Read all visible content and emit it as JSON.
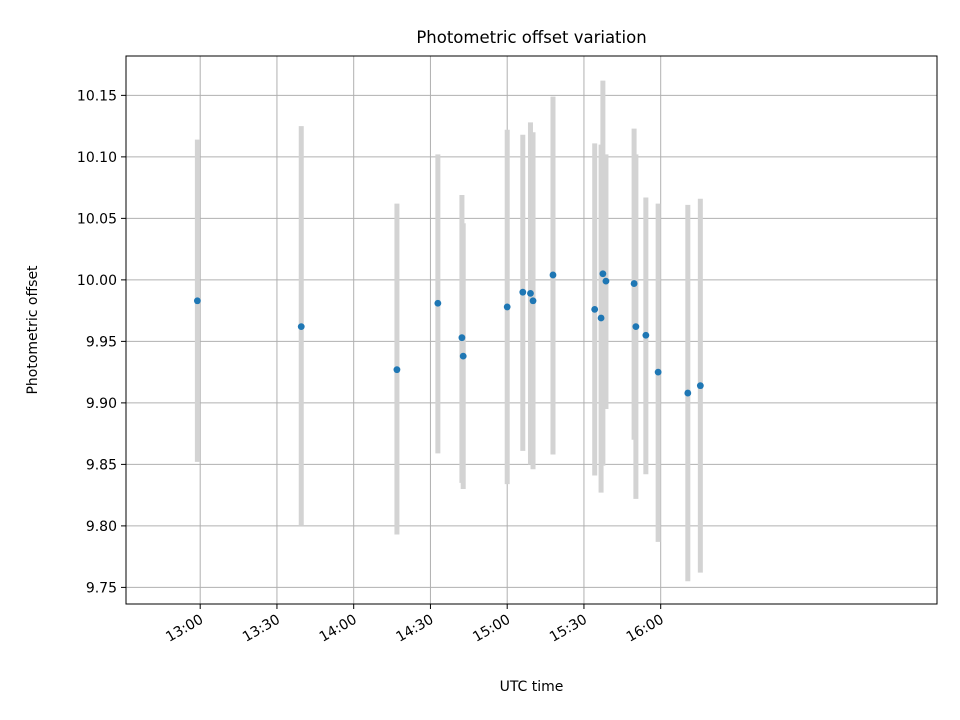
{
  "chart_data": {
    "type": "scatter",
    "title": "Photometric offset variation",
    "xlabel": "UTC time",
    "ylabel": "Photometric offset",
    "grid": true,
    "x_unit": "minutes since 00:00 UTC",
    "xlim": [
      751,
      1068
    ],
    "ylim": [
      9.7365,
      10.182
    ],
    "x_ticks": [
      {
        "value": 780,
        "label": "13:00"
      },
      {
        "value": 810,
        "label": "13:30"
      },
      {
        "value": 840,
        "label": "14:00"
      },
      {
        "value": 870,
        "label": "14:30"
      },
      {
        "value": 900,
        "label": "15:00"
      },
      {
        "value": 930,
        "label": "15:30"
      },
      {
        "value": 960,
        "label": "16:00"
      }
    ],
    "y_ticks": [
      {
        "value": 9.75,
        "label": "9.75"
      },
      {
        "value": 9.8,
        "label": "9.80"
      },
      {
        "value": 9.85,
        "label": "9.85"
      },
      {
        "value": 9.9,
        "label": "9.90"
      },
      {
        "value": 9.95,
        "label": "9.95"
      },
      {
        "value": 10.0,
        "label": "10.00"
      },
      {
        "value": 10.05,
        "label": "10.05"
      },
      {
        "value": 10.1,
        "label": "10.10"
      },
      {
        "value": 10.15,
        "label": "10.15"
      }
    ],
    "marker_color": "#1f77b4",
    "errorbar_color": "#d3d3d3",
    "points": [
      {
        "x": 778.9,
        "y": 9.983,
        "ylow": 9.852,
        "yhigh": 10.114
      },
      {
        "x": 819.5,
        "y": 9.962,
        "ylow": 9.8,
        "yhigh": 10.125
      },
      {
        "x": 856.9,
        "y": 9.927,
        "ylow": 9.793,
        "yhigh": 10.062
      },
      {
        "x": 872.9,
        "y": 9.981,
        "ylow": 9.859,
        "yhigh": 10.102
      },
      {
        "x": 882.3,
        "y": 9.953,
        "ylow": 9.835,
        "yhigh": 10.069
      },
      {
        "x": 882.8,
        "y": 9.938,
        "ylow": 9.83,
        "yhigh": 10.046
      },
      {
        "x": 900.0,
        "y": 9.978,
        "ylow": 9.834,
        "yhigh": 10.122
      },
      {
        "x": 906.1,
        "y": 9.99,
        "ylow": 9.861,
        "yhigh": 10.118
      },
      {
        "x": 909.1,
        "y": 9.989,
        "ylow": 9.85,
        "yhigh": 10.128
      },
      {
        "x": 910.1,
        "y": 9.983,
        "ylow": 9.846,
        "yhigh": 10.12
      },
      {
        "x": 917.9,
        "y": 10.004,
        "ylow": 9.858,
        "yhigh": 10.149
      },
      {
        "x": 934.2,
        "y": 9.976,
        "ylow": 9.841,
        "yhigh": 10.111
      },
      {
        "x": 936.7,
        "y": 9.969,
        "ylow": 9.827,
        "yhigh": 10.11
      },
      {
        "x": 937.4,
        "y": 10.005,
        "ylow": 9.849,
        "yhigh": 10.162
      },
      {
        "x": 938.6,
        "y": 9.999,
        "ylow": 9.895,
        "yhigh": 10.102
      },
      {
        "x": 949.6,
        "y": 9.997,
        "ylow": 9.87,
        "yhigh": 10.123
      },
      {
        "x": 950.3,
        "y": 9.962,
        "ylow": 9.822,
        "yhigh": 10.102
      },
      {
        "x": 954.2,
        "y": 9.955,
        "ylow": 9.842,
        "yhigh": 10.067
      },
      {
        "x": 959.0,
        "y": 9.925,
        "ylow": 9.787,
        "yhigh": 10.062
      },
      {
        "x": 970.6,
        "y": 9.908,
        "ylow": 9.755,
        "yhigh": 10.061
      },
      {
        "x": 975.5,
        "y": 9.914,
        "ylow": 9.762,
        "yhigh": 10.066
      }
    ]
  }
}
